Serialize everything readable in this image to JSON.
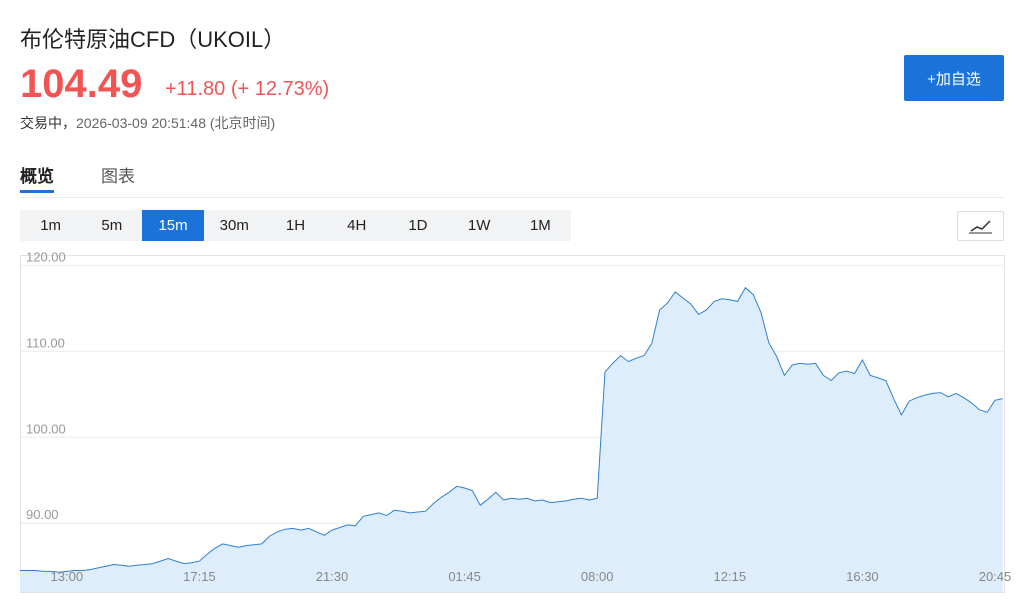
{
  "header": {
    "title": "布伦特原油CFD（UKOIL）",
    "price": "104.49",
    "change": "+11.80",
    "change_pct": "(+ 12.73%)",
    "status": "交易中，",
    "timestamp": "2026-03-09 20:51:48 (北京时间)",
    "watch_button": "+加自选"
  },
  "tabs": [
    "概览",
    "图表"
  ],
  "active_tab": "概览",
  "intervals": [
    "1m",
    "5m",
    "15m",
    "30m",
    "1H",
    "4H",
    "1D",
    "1W",
    "1M"
  ],
  "active_interval": "15m",
  "chart_data": {
    "type": "area",
    "categories": [
      null,
      null,
      null,
      null,
      null,
      null,
      "13:00",
      null,
      null,
      null,
      null,
      null,
      null,
      null,
      null,
      null,
      null,
      null,
      null,
      null,
      null,
      null,
      null,
      "17:15",
      null,
      null,
      null,
      null,
      null,
      null,
      null,
      null,
      null,
      null,
      null,
      null,
      null,
      null,
      null,
      null,
      "21:30",
      null,
      null,
      null,
      null,
      null,
      null,
      null,
      null,
      null,
      null,
      null,
      null,
      null,
      null,
      null,
      null,
      "01:45",
      null,
      null,
      null,
      null,
      null,
      null,
      null,
      null,
      null,
      null,
      null,
      null,
      null,
      null,
      null,
      null,
      "08:00",
      null,
      null,
      null,
      null,
      null,
      null,
      null,
      null,
      null,
      null,
      null,
      null,
      null,
      null,
      null,
      null,
      "12:15",
      null,
      null,
      null,
      null,
      null,
      null,
      null,
      null,
      null,
      null,
      null,
      null,
      null,
      null,
      null,
      null,
      "16:30",
      null,
      null,
      null,
      null,
      null,
      null,
      null,
      null,
      null,
      null,
      null,
      null,
      null,
      null,
      null,
      null,
      "20:45",
      null
    ],
    "values": [
      84.5,
      84.5,
      84.5,
      84.4,
      84.4,
      84.3,
      84.4,
      84.5,
      84.5,
      84.6,
      84.8,
      85.0,
      85.2,
      85.1,
      85.0,
      85.1,
      85.2,
      85.3,
      85.6,
      85.9,
      85.6,
      85.3,
      85.4,
      85.6,
      86.4,
      87.1,
      87.6,
      87.4,
      87.2,
      87.4,
      87.5,
      87.6,
      88.5,
      89.0,
      89.3,
      89.4,
      89.2,
      89.4,
      89.0,
      88.6,
      89.2,
      89.5,
      89.8,
      89.7,
      90.8,
      91.0,
      91.2,
      90.9,
      91.5,
      91.4,
      91.2,
      91.3,
      91.4,
      92.3,
      93.0,
      93.6,
      94.3,
      94.1,
      93.8,
      92.1,
      92.8,
      93.6,
      92.7,
      92.9,
      92.8,
      92.9,
      92.6,
      92.7,
      92.4,
      92.5,
      92.6,
      92.8,
      92.9,
      92.7,
      92.9,
      107.6,
      108.6,
      109.5,
      108.8,
      109.2,
      109.5,
      110.9,
      114.8,
      115.6,
      116.9,
      116.2,
      115.5,
      114.3,
      114.8,
      115.8,
      116.1,
      116.0,
      115.8,
      117.4,
      116.6,
      114.5,
      111.0,
      109.4,
      107.2,
      108.4,
      108.6,
      108.5,
      108.6,
      107.2,
      106.6,
      107.5,
      107.7,
      107.4,
      109.0,
      107.2,
      106.9,
      106.6,
      104.5,
      102.6,
      104.2,
      104.6,
      104.9,
      105.1,
      105.2,
      104.7,
      105.1,
      104.6,
      104.0,
      103.2,
      102.9,
      104.3,
      104.5
    ],
    "color": "#2f80d1",
    "fill_color": "#deedfb",
    "ylim": [
      82,
      121.2
    ],
    "yticks": [
      {
        "value": 90,
        "label": "90.00"
      },
      {
        "value": 100,
        "label": "100.00"
      },
      {
        "value": 110,
        "label": "110.00"
      },
      {
        "value": 120,
        "label": "120.00"
      }
    ],
    "grid": true
  }
}
